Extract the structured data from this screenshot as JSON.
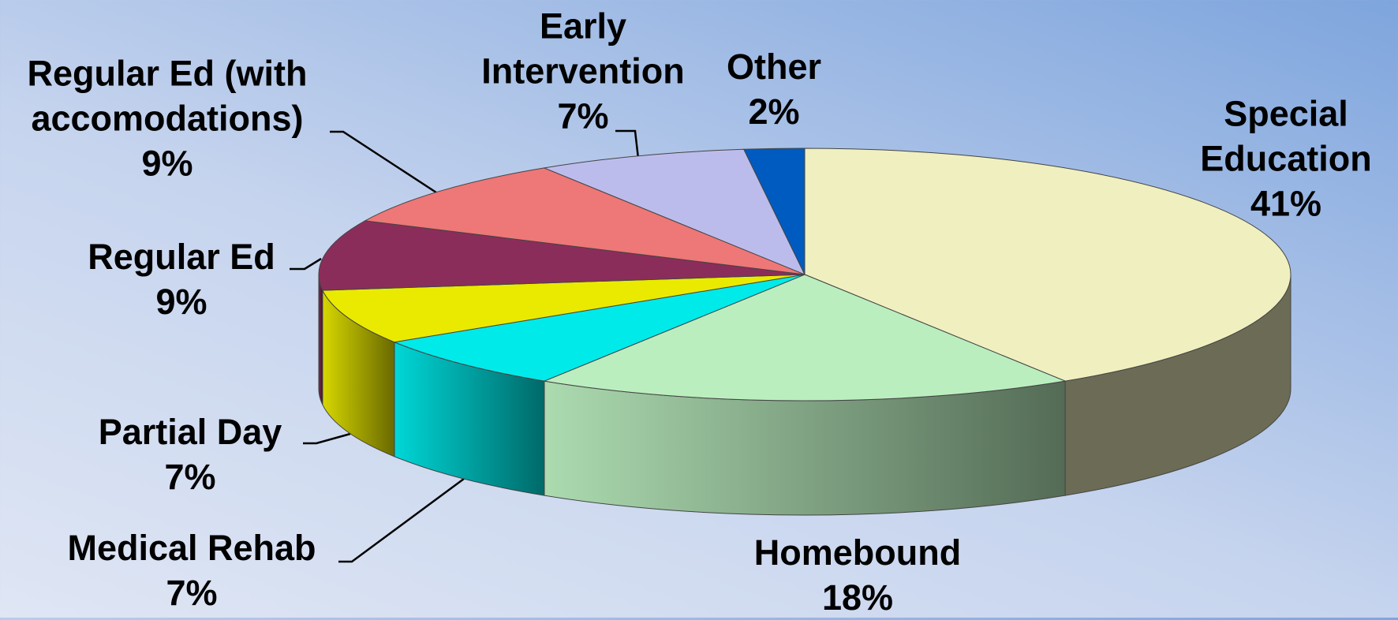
{
  "chart_data": {
    "type": "pie",
    "categories": [
      "Special Education",
      "Homebound",
      "Medical Rehab",
      "Partial Day",
      "Regular Ed",
      "Regular Ed (with accomodations)",
      "Early Intervention",
      "Other"
    ],
    "values": [
      41,
      18,
      7,
      7,
      9,
      9,
      7,
      2
    ],
    "value_labels": [
      "41%",
      "18%",
      "7%",
      "7%",
      "9%",
      "9%",
      "7%",
      "2%"
    ],
    "colors": [
      "#f0efbf",
      "#bbeebf",
      "#00eaea",
      "#eaea00",
      "#8b2d5a",
      "#ee7777",
      "#bcbcec",
      "#005bc0"
    ]
  }
}
